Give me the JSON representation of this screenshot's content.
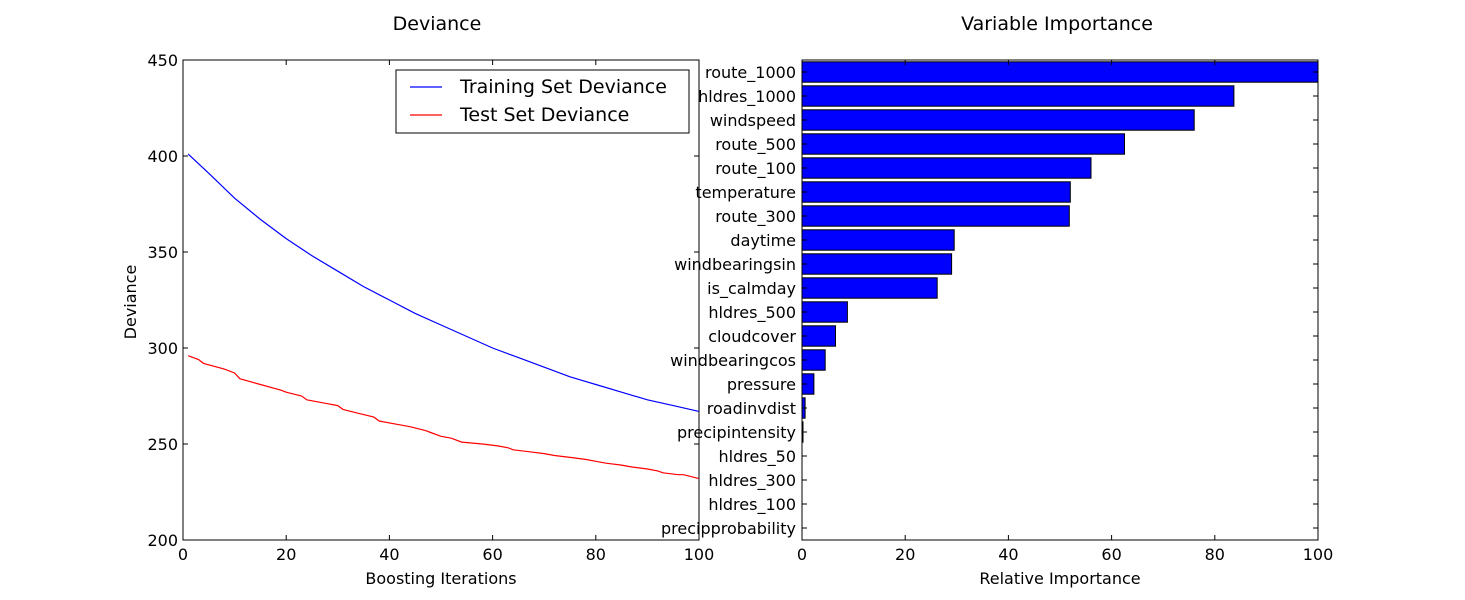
{
  "chart_data": [
    {
      "type": "line",
      "title": "Deviance",
      "xlabel": "Boosting Iterations",
      "ylabel": "Deviance",
      "xlim": [
        0,
        100
      ],
      "ylim": [
        200,
        450
      ],
      "xticks": [
        0,
        20,
        40,
        60,
        80,
        100
      ],
      "yticks": [
        200,
        250,
        300,
        350,
        400,
        450
      ],
      "legend_placement": "top-right",
      "series": [
        {
          "name": "Training Set Deviance",
          "color": "#0000ff",
          "x": [
            1,
            5,
            10,
            15,
            20,
            25,
            30,
            35,
            40,
            45,
            50,
            55,
            60,
            65,
            70,
            75,
            80,
            85,
            90,
            95,
            100
          ],
          "values": [
            401,
            391,
            378,
            367,
            357,
            348,
            340,
            332,
            325,
            318,
            312,
            306,
            300,
            295,
            290,
            285,
            281,
            277,
            273,
            270,
            267
          ]
        },
        {
          "name": "Test Set Deviance",
          "color": "#ff0000",
          "x": [
            1,
            3,
            4,
            8,
            10,
            11,
            15,
            19,
            20,
            23,
            24,
            28,
            30,
            31,
            34,
            37,
            38,
            42,
            44,
            47,
            48,
            50,
            52,
            54,
            58,
            61,
            63,
            64,
            67,
            70,
            72,
            75,
            78,
            80,
            82,
            85,
            87,
            90,
            92,
            93,
            96,
            97,
            100
          ],
          "values": [
            296,
            294,
            292,
            289,
            287,
            284,
            281,
            278,
            277,
            275,
            273,
            271,
            270,
            268,
            266,
            264,
            262,
            260,
            259,
            257,
            256,
            254,
            253,
            251,
            250,
            249,
            248,
            247,
            246,
            245,
            244,
            243,
            242,
            241,
            240,
            239,
            238,
            237,
            236,
            235,
            234,
            234,
            232
          ]
        }
      ]
    },
    {
      "type": "bar",
      "orientation": "horizontal",
      "title": "Variable Importance",
      "xlabel": "Relative Importance",
      "ylabel": "",
      "xlim": [
        0,
        100
      ],
      "xticks": [
        0,
        20,
        40,
        60,
        80,
        100
      ],
      "bar_color": "#0000ff",
      "categories": [
        "route_1000",
        "hldres_1000",
        "windspeed",
        "route_500",
        "route_100",
        "temperature",
        "route_300",
        "daytime",
        "windbearingsin",
        "is_calmday",
        "hldres_500",
        "cloudcover",
        "windbearingcos",
        "pressure",
        "roadinvdist",
        "precipintensity",
        "hldres_50",
        "hldres_300",
        "hldres_100",
        "precipprobability"
      ],
      "values": [
        100,
        83.7,
        76,
        62.5,
        56,
        52,
        51.8,
        29.5,
        29,
        26.2,
        8.8,
        6.5,
        4.5,
        2.3,
        0.6,
        0.2,
        0,
        0,
        0,
        0
      ]
    }
  ]
}
